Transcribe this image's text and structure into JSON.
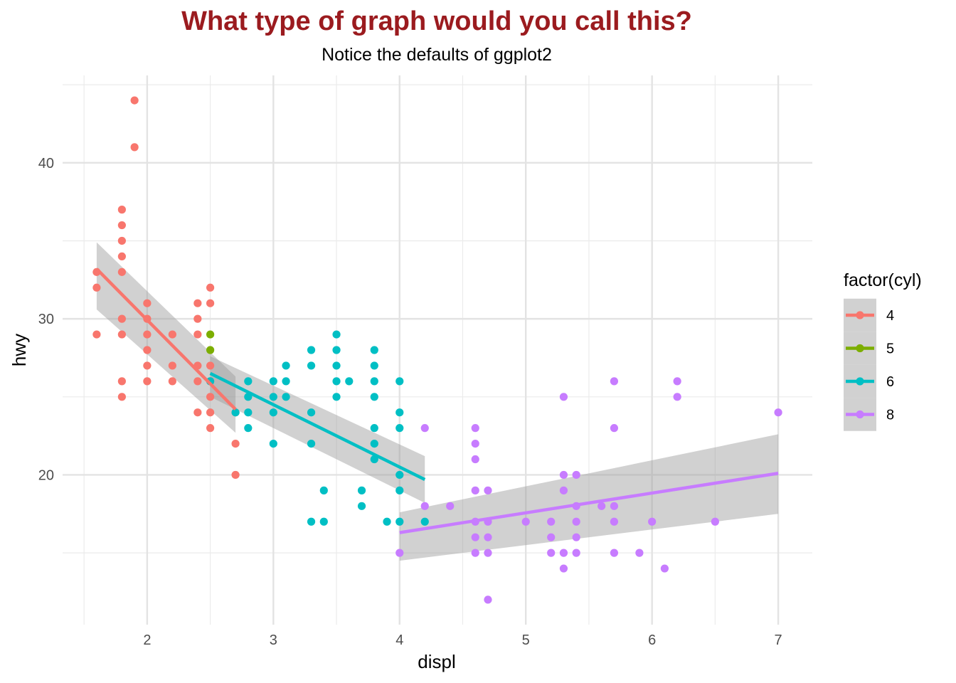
{
  "chart_data": {
    "type": "scatter",
    "title": "What type of graph would you call this?",
    "subtitle": "Notice the defaults of ggplot2",
    "xlabel": "displ",
    "ylabel": "hwy",
    "xlim": [
      1.33,
      7.27
    ],
    "ylim": [
      10.4,
      45.6
    ],
    "x_ticks": [
      2,
      3,
      4,
      5,
      6,
      7
    ],
    "y_ticks": [
      20,
      30,
      40
    ],
    "grid": true,
    "legend": {
      "title": "factor(cyl)",
      "position": "right"
    },
    "colors": {
      "title": "#9b1b1f",
      "band": "#999999"
    },
    "series": [
      {
        "name": "4",
        "color": "#F8766D",
        "points": [
          [
            1.6,
            33
          ],
          [
            1.6,
            32
          ],
          [
            1.6,
            29
          ],
          [
            1.8,
            37
          ],
          [
            1.8,
            36
          ],
          [
            1.8,
            35
          ],
          [
            1.8,
            34
          ],
          [
            1.8,
            33
          ],
          [
            1.8,
            30
          ],
          [
            1.8,
            29
          ],
          [
            1.8,
            26
          ],
          [
            1.8,
            25
          ],
          [
            1.9,
            44
          ],
          [
            1.9,
            41
          ],
          [
            2.0,
            31
          ],
          [
            2.0,
            30
          ],
          [
            2.0,
            29
          ],
          [
            2.0,
            28
          ],
          [
            2.0,
            27
          ],
          [
            2.0,
            26
          ],
          [
            2.2,
            29
          ],
          [
            2.2,
            27
          ],
          [
            2.2,
            26
          ],
          [
            2.4,
            31
          ],
          [
            2.4,
            30
          ],
          [
            2.4,
            29
          ],
          [
            2.4,
            27
          ],
          [
            2.4,
            26
          ],
          [
            2.4,
            24
          ],
          [
            2.5,
            32
          ],
          [
            2.5,
            31
          ],
          [
            2.5,
            27
          ],
          [
            2.5,
            26
          ],
          [
            2.5,
            25
          ],
          [
            2.5,
            24
          ],
          [
            2.5,
            23
          ],
          [
            2.7,
            24
          ],
          [
            2.7,
            22
          ],
          [
            2.7,
            20
          ]
        ],
        "fit": {
          "x": [
            1.6,
            2.7
          ],
          "y": [
            33.2,
            24.2
          ],
          "lower": [
            30.6,
            22.7
          ],
          "upper": [
            34.9,
            26.3
          ]
        }
      },
      {
        "name": "5",
        "color": "#7CAE00",
        "points": [
          [
            2.5,
            29
          ],
          [
            2.5,
            28
          ]
        ],
        "fit": null
      },
      {
        "name": "6",
        "color": "#00BFC4",
        "points": [
          [
            2.5,
            26
          ],
          [
            2.7,
            24
          ],
          [
            2.8,
            26
          ],
          [
            2.8,
            25
          ],
          [
            2.8,
            24
          ],
          [
            2.8,
            23
          ],
          [
            3.0,
            26
          ],
          [
            3.0,
            25
          ],
          [
            3.0,
            24
          ],
          [
            3.0,
            22
          ],
          [
            3.1,
            27
          ],
          [
            3.1,
            26
          ],
          [
            3.1,
            25
          ],
          [
            3.3,
            28
          ],
          [
            3.3,
            27
          ],
          [
            3.3,
            24
          ],
          [
            3.3,
            22
          ],
          [
            3.3,
            17
          ],
          [
            3.4,
            19
          ],
          [
            3.4,
            17
          ],
          [
            3.5,
            29
          ],
          [
            3.5,
            28
          ],
          [
            3.5,
            27
          ],
          [
            3.5,
            26
          ],
          [
            3.5,
            25
          ],
          [
            3.6,
            26
          ],
          [
            3.7,
            19
          ],
          [
            3.7,
            18
          ],
          [
            3.8,
            28
          ],
          [
            3.8,
            27
          ],
          [
            3.8,
            26
          ],
          [
            3.8,
            25
          ],
          [
            3.8,
            23
          ],
          [
            3.8,
            22
          ],
          [
            3.8,
            21
          ],
          [
            3.9,
            17
          ],
          [
            4.0,
            26
          ],
          [
            4.0,
            24
          ],
          [
            4.0,
            23
          ],
          [
            4.0,
            20
          ],
          [
            4.0,
            19
          ],
          [
            4.0,
            17
          ],
          [
            4.2,
            17
          ]
        ],
        "fit": {
          "x": [
            2.5,
            4.2
          ],
          "y": [
            26.5,
            19.7
          ],
          "lower": [
            25.0,
            18.2
          ],
          "upper": [
            27.6,
            21.2
          ]
        }
      },
      {
        "name": "8",
        "color": "#C77CFF",
        "points": [
          [
            4.0,
            15
          ],
          [
            4.2,
            23
          ],
          [
            4.2,
            18
          ],
          [
            4.4,
            18
          ],
          [
            4.6,
            23
          ],
          [
            4.6,
            22
          ],
          [
            4.6,
            21
          ],
          [
            4.6,
            19
          ],
          [
            4.6,
            17
          ],
          [
            4.6,
            16
          ],
          [
            4.6,
            15
          ],
          [
            4.7,
            19
          ],
          [
            4.7,
            17
          ],
          [
            4.7,
            16
          ],
          [
            4.7,
            15
          ],
          [
            4.7,
            12
          ],
          [
            5.0,
            17
          ],
          [
            5.2,
            17
          ],
          [
            5.2,
            16
          ],
          [
            5.2,
            15
          ],
          [
            5.3,
            25
          ],
          [
            5.3,
            20
          ],
          [
            5.3,
            19
          ],
          [
            5.3,
            15
          ],
          [
            5.3,
            14
          ],
          [
            5.4,
            20
          ],
          [
            5.4,
            18
          ],
          [
            5.4,
            17
          ],
          [
            5.4,
            16
          ],
          [
            5.4,
            15
          ],
          [
            5.6,
            18
          ],
          [
            5.7,
            26
          ],
          [
            5.7,
            23
          ],
          [
            5.7,
            18
          ],
          [
            5.7,
            17
          ],
          [
            5.7,
            15
          ],
          [
            5.9,
            15
          ],
          [
            6.0,
            17
          ],
          [
            6.1,
            14
          ],
          [
            6.2,
            26
          ],
          [
            6.2,
            25
          ],
          [
            6.5,
            17
          ],
          [
            7.0,
            24
          ]
        ],
        "fit": {
          "x": [
            4.0,
            7.0
          ],
          "y": [
            16.3,
            20.1
          ],
          "lower": [
            14.5,
            17.5
          ],
          "upper": [
            17.6,
            22.6
          ]
        }
      }
    ]
  }
}
